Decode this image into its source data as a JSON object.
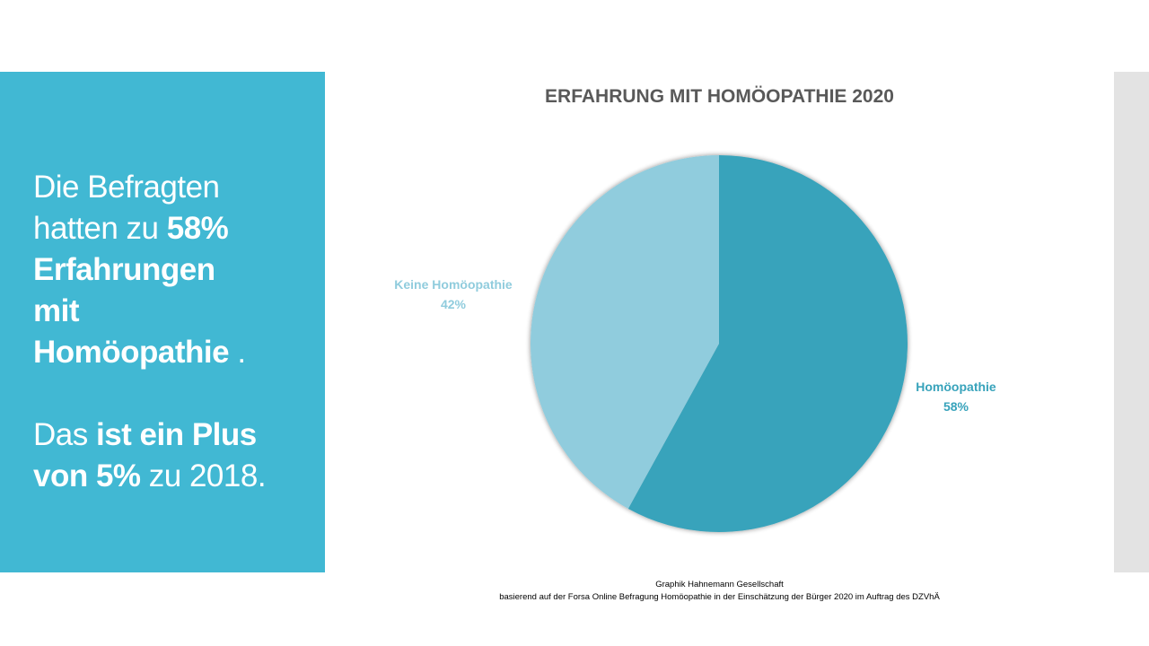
{
  "panel": {
    "line1": "Die Befragten",
    "line2a": "hatten zu ",
    "line2b": "58%",
    "line3": "Erfahrungen",
    "line4": "mit",
    "line5a": "Homöopathie",
    "line5b": " .",
    "line6a": "Das ",
    "line6b": "ist ein Plus",
    "line7a": "von 5%",
    "line7b": " zu 2018."
  },
  "chart_data": {
    "type": "pie",
    "title": "ERFAHRUNG MIT HOMÖOPATHIE 2020",
    "slices": [
      {
        "label": "Homöopathie",
        "value": 58,
        "value_label": "58%",
        "color": "#38a3bb"
      },
      {
        "label": "Keine Homöopathie",
        "value": 42,
        "value_label": "42%",
        "color": "#90ccdd"
      }
    ],
    "start_angle": "12 o'clock",
    "direction": "clockwise"
  },
  "footer": {
    "line1": "Graphik Hahnemann  Gesellschaft",
    "line2": "basierend auf der Forsa Online Befragung Homöopathie  in der Einschätzung  der Bürger 2020 im Auftrag des DZVhÄ"
  },
  "colors": {
    "panel": "#41b8d3",
    "gray_bar": "#e3e3e3"
  }
}
